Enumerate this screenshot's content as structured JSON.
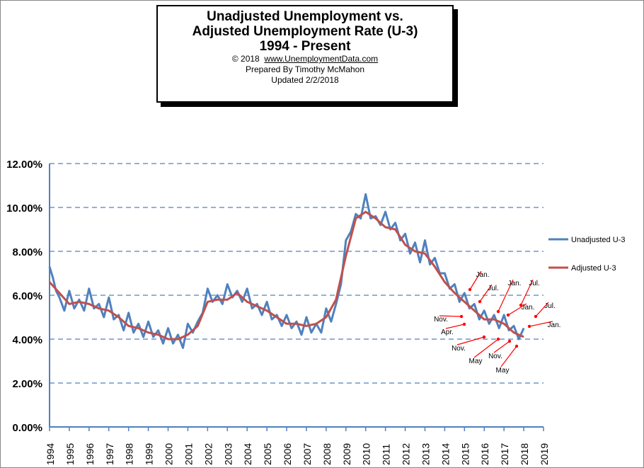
{
  "header": {
    "title_line1": "Unadjusted Unemployment vs.",
    "title_line2": "Adjusted Unemployment Rate (U-3)",
    "title_line3": "1994 - Present",
    "copyright": "© 2018",
    "url": "www.UnemploymentData.com",
    "prepared_by": "Prepared  By Timothy McMahon",
    "updated": "Updated  2/2/2018"
  },
  "colors": {
    "unadjusted": "#4f81bd",
    "adjusted": "#c0504d",
    "axis": "#4f81bd",
    "arrow": "#ff0000"
  },
  "chart_data": {
    "type": "line",
    "ylim": [
      0,
      12
    ],
    "yticks": [
      "0.00%",
      "2.00%",
      "4.00%",
      "6.00%",
      "8.00%",
      "10.00%",
      "12.00%"
    ],
    "xlim": [
      1994,
      2019
    ],
    "xticks": [
      "1994",
      "1995",
      "1996",
      "1997",
      "1998",
      "1999",
      "2000",
      "2001",
      "2002",
      "2003",
      "2004",
      "2005",
      "2006",
      "2007",
      "2008",
      "2009",
      "2010",
      "2011",
      "2012",
      "2013",
      "2014",
      "2015",
      "2016",
      "2017",
      "2018",
      "2019"
    ],
    "grid": "horizontal dashed",
    "legend_position": "right",
    "series": [
      {
        "name": "Unadjusted U-3",
        "x": [
          1994.0,
          1994.17,
          1994.33,
          1994.5,
          1994.75,
          1995.0,
          1995.25,
          1995.5,
          1995.75,
          1996.0,
          1996.25,
          1996.5,
          1996.75,
          1997.0,
          1997.25,
          1997.5,
          1997.75,
          1998.0,
          1998.25,
          1998.5,
          1998.75,
          1999.0,
          1999.25,
          1999.5,
          1999.75,
          2000.0,
          2000.25,
          2000.5,
          2000.75,
          2001.0,
          2001.25,
          2001.5,
          2001.75,
          2002.0,
          2002.25,
          2002.5,
          2002.75,
          2003.0,
          2003.25,
          2003.5,
          2003.75,
          2004.0,
          2004.25,
          2004.5,
          2004.75,
          2005.0,
          2005.25,
          2005.5,
          2005.75,
          2006.0,
          2006.25,
          2006.5,
          2006.75,
          2007.0,
          2007.25,
          2007.5,
          2007.75,
          2008.0,
          2008.25,
          2008.5,
          2008.75,
          2009.0,
          2009.25,
          2009.5,
          2009.75,
          2010.0,
          2010.25,
          2010.5,
          2010.75,
          2011.0,
          2011.25,
          2011.5,
          2011.75,
          2012.0,
          2012.25,
          2012.5,
          2012.75,
          2013.0,
          2013.25,
          2013.5,
          2013.75,
          2014.0,
          2014.25,
          2014.5,
          2014.75,
          2015.0,
          2015.25,
          2015.5,
          2015.75,
          2016.0,
          2016.25,
          2016.5,
          2016.75,
          2017.0,
          2017.25,
          2017.5,
          2017.75,
          2018.0
        ],
        "values": [
          7.3,
          6.8,
          6.2,
          5.9,
          5.3,
          6.2,
          5.4,
          5.8,
          5.3,
          6.3,
          5.4,
          5.6,
          5.0,
          5.9,
          4.9,
          5.1,
          4.4,
          5.2,
          4.3,
          4.7,
          4.1,
          4.8,
          4.1,
          4.4,
          3.8,
          4.5,
          3.8,
          4.2,
          3.6,
          4.7,
          4.3,
          4.8,
          5.2,
          6.3,
          5.7,
          6.0,
          5.6,
          6.5,
          5.9,
          6.2,
          5.7,
          6.3,
          5.4,
          5.6,
          5.1,
          5.7,
          4.9,
          5.1,
          4.6,
          5.1,
          4.5,
          4.8,
          4.2,
          5.0,
          4.3,
          4.7,
          4.3,
          5.4,
          4.8,
          5.6,
          6.5,
          8.5,
          8.9,
          9.7,
          9.5,
          10.6,
          9.5,
          9.6,
          9.2,
          9.8,
          9.0,
          9.3,
          8.5,
          8.8,
          7.9,
          8.4,
          7.5,
          8.5,
          7.4,
          7.7,
          7.0,
          7.0,
          6.3,
          6.5,
          5.7,
          6.1,
          5.4,
          5.6,
          4.9,
          5.3,
          4.7,
          5.1,
          4.5,
          5.1,
          4.4,
          4.6,
          4.0,
          4.5
        ]
      },
      {
        "name": "Adjusted U-3",
        "x": [
          1994.0,
          1994.5,
          1995.0,
          1995.5,
          1996.0,
          1996.5,
          1997.0,
          1997.5,
          1998.0,
          1998.5,
          1999.0,
          1999.5,
          2000.0,
          2000.5,
          2001.0,
          2001.5,
          2002.0,
          2002.5,
          2003.0,
          2003.5,
          2004.0,
          2004.5,
          2005.0,
          2005.5,
          2006.0,
          2006.5,
          2007.0,
          2007.5,
          2008.0,
          2008.5,
          2009.0,
          2009.5,
          2010.0,
          2010.5,
          2011.0,
          2011.5,
          2012.0,
          2012.5,
          2013.0,
          2013.5,
          2014.0,
          2014.5,
          2015.0,
          2015.5,
          2016.0,
          2016.5,
          2017.0,
          2017.5,
          2018.0
        ],
        "values": [
          6.6,
          6.1,
          5.6,
          5.7,
          5.6,
          5.4,
          5.3,
          5.0,
          4.6,
          4.5,
          4.3,
          4.2,
          4.0,
          4.0,
          4.2,
          4.6,
          5.7,
          5.8,
          5.8,
          6.1,
          5.7,
          5.5,
          5.3,
          5.0,
          4.7,
          4.7,
          4.6,
          4.7,
          5.0,
          5.8,
          7.8,
          9.5,
          9.8,
          9.5,
          9.1,
          9.0,
          8.3,
          8.0,
          7.9,
          7.3,
          6.6,
          6.1,
          5.7,
          5.3,
          4.9,
          4.9,
          4.7,
          4.3,
          4.1
        ]
      }
    ],
    "annotations": [
      "Jan.",
      "Jul.",
      "Jan.",
      "Jul.",
      "Jan.",
      "Jul.",
      "Jan.",
      "Nov.",
      "Apr.",
      "Nov.",
      "May",
      "Nov.",
      "May"
    ]
  }
}
